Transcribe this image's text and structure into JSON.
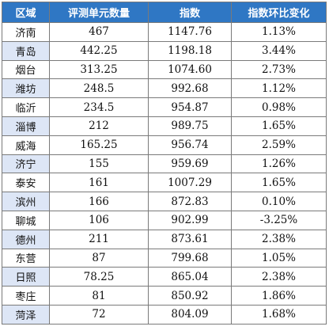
{
  "colors": {
    "header_bg": "#2f77c4",
    "header_text": "#ffffff",
    "alt_row_cell_bg": "#dde6f6",
    "border": "#7a7a7a"
  },
  "table": {
    "headers": [
      "区域",
      "评测单元数量",
      "指数",
      "指数环比变化"
    ],
    "rows": [
      [
        "济南",
        "467",
        "1147.76",
        "1.13%"
      ],
      [
        "青岛",
        "442.25",
        "1198.18",
        "3.44%"
      ],
      [
        "烟台",
        "313.25",
        "1074.60",
        "2.73%"
      ],
      [
        "潍坊",
        "248.5",
        "992.68",
        "1.12%"
      ],
      [
        "临沂",
        "234.5",
        "954.87",
        "0.98%"
      ],
      [
        "淄博",
        "212",
        "989.75",
        "1.65%"
      ],
      [
        "威海",
        "165.25",
        "956.74",
        "2.59%"
      ],
      [
        "济宁",
        "155",
        "959.69",
        "1.26%"
      ],
      [
        "泰安",
        "161",
        "1007.29",
        "1.65%"
      ],
      [
        "滨州",
        "166",
        "872.83",
        "0.10%"
      ],
      [
        "聊城",
        "106",
        "902.99",
        "-3.25%"
      ],
      [
        "德州",
        "211",
        "873.61",
        "2.38%"
      ],
      [
        "东营",
        "87",
        "799.68",
        "1.05%"
      ],
      [
        "日照",
        "78.25",
        "865.04",
        "2.38%"
      ],
      [
        "枣庄",
        "81",
        "850.92",
        "1.86%"
      ],
      [
        "菏泽",
        "72",
        "804.09",
        "1.68%"
      ]
    ]
  }
}
